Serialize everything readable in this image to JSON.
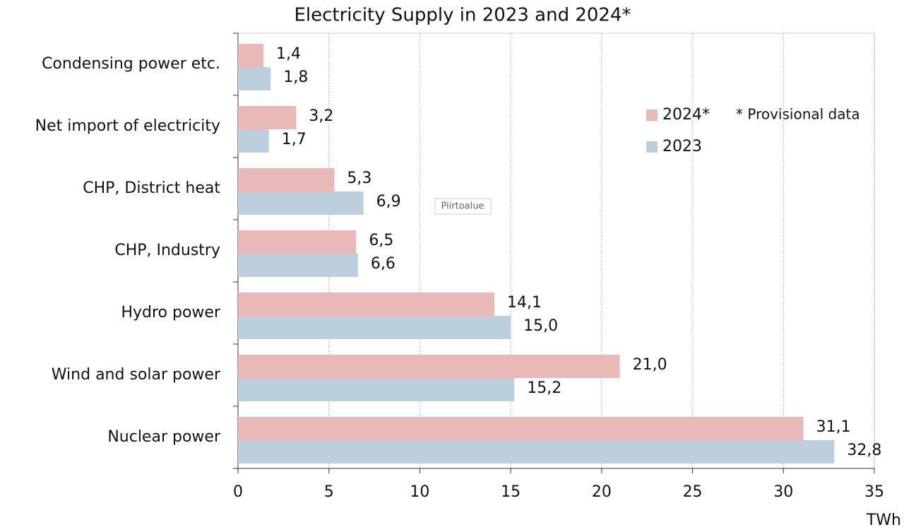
{
  "chart_data": {
    "type": "barh",
    "title": "Electricity Supply in 2023 and 2024*",
    "x_label": "TWh",
    "annotation": "* Provisional data",
    "tooltip": "Piirtoalue",
    "categories": [
      "Condensing power etc.",
      "Net import of electricity",
      "CHP, District heat",
      "CHP, Industry",
      "Hydro power",
      "Wind and solar power",
      "Nuclear power"
    ],
    "series": [
      {
        "name": "2024*",
        "color": "#e9b9b8",
        "values": [
          1.4,
          3.2,
          5.3,
          6.5,
          14.1,
          21.0,
          31.1
        ],
        "value_labels": [
          "1,4",
          "3,2",
          "5,3",
          "6,5",
          "14,1",
          "21,0",
          "31,1"
        ]
      },
      {
        "name": "2023",
        "color": "#bccfdd",
        "values": [
          1.8,
          1.7,
          6.9,
          6.6,
          15.0,
          15.2,
          32.8
        ],
        "value_labels": [
          "1,8",
          "1,7",
          "6,9",
          "6,6",
          "15,0",
          "15,2",
          "32,8"
        ]
      }
    ],
    "xlim": [
      0,
      35
    ],
    "xticks": [
      0,
      5,
      10,
      15,
      20,
      25,
      30,
      35
    ],
    "grid": true
  }
}
